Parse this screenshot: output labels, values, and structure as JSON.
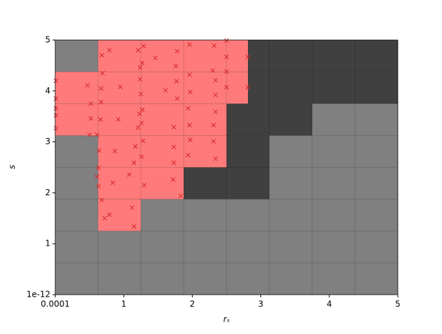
{
  "chart_data": {
    "type": "scatter",
    "x_label": "rₛ",
    "y_label": "s",
    "xlim": [
      0.0001,
      5
    ],
    "ylim": [
      1e-12,
      5
    ],
    "xticks": [
      0.0001,
      1,
      2,
      3,
      4,
      5
    ],
    "yticks": [
      1e-12,
      1,
      2,
      3,
      4,
      5
    ],
    "regions": [
      {
        "color": "#808080",
        "rects": [
          [
            0.0001,
            5,
            1e-12,
            5
          ]
        ]
      },
      {
        "color": "#404040",
        "rects": [
          [
            2.8125,
            5,
            3.75,
            5
          ],
          [
            2.5,
            3.75,
            3.125,
            3.75
          ],
          [
            2.5,
            3.125,
            2.5,
            3.125
          ],
          [
            1.875,
            3.125,
            1.875,
            2.5
          ]
        ]
      },
      {
        "color": "#ff7b7b",
        "rects": [
          [
            0.625,
            2.8125,
            4.375,
            5
          ],
          [
            0.0001,
            2.8125,
            3.75,
            4.375
          ],
          [
            0.0001,
            2.5,
            3.125,
            3.75
          ],
          [
            0.625,
            2.5,
            2.5,
            3.125
          ],
          [
            0.625,
            1.875,
            1.875,
            2.5
          ],
          [
            0.625,
            1.25,
            1.25,
            1.875
          ]
        ]
      }
    ],
    "color": "#d62728",
    "x": [
      0.68,
      0.79,
      0.69,
      0.67,
      0.67,
      0.66,
      0.61,
      0.64,
      0.63,
      0.61,
      0.63,
      0.68,
      0.72,
      0.79,
      0.84,
      0.87,
      0.92,
      0.95,
      1.15,
      1.12,
      1.08,
      1.15,
      1.17,
      1.21,
      1.23,
      1.25,
      1.24,
      1.21,
      1.29,
      1.24,
      1.27,
      1.3,
      1.26,
      1.28,
      1.26,
      1.27,
      0.01,
      0.01,
      0.01,
      0.01,
      0.01,
      0.47,
      0.52,
      0.52,
      0.5,
      1.46,
      1.61,
      1.73,
      1.73,
      1.73,
      1.72,
      1.76,
      1.77,
      1.78,
      1.83,
      1.78,
      1.96,
      1.96,
      1.97,
      1.94,
      1.96,
      1.97,
      1.94,
      2.32,
      2.5,
      2.5,
      2.5,
      2.3,
      2.34,
      2.34,
      2.34,
      2.31,
      2.31,
      2.34,
      2.5,
      2.81,
      2.81
    ],
    "y": [
      4.7,
      4.8,
      4.35,
      4.05,
      3.78,
      3.44,
      3.14,
      2.83,
      2.49,
      2.32,
      2.13,
      1.86,
      1.5,
      1.57,
      2.2,
      2.82,
      3.44,
      4.08,
      1.34,
      1.71,
      2.36,
      2.59,
      2.91,
      3.28,
      3.55,
      3.94,
      4.23,
      4.8,
      4.88,
      4.46,
      4.55,
      2.15,
      2.71,
      3.02,
      3.37,
      3.63,
      4.2,
      3.85,
      3.66,
      3.52,
      3.27,
      4.11,
      3.75,
      3.46,
      3.14,
      4.65,
      4.01,
      3.29,
      2.9,
      2.59,
      2.26,
      4.49,
      4.19,
      3.85,
      1.94,
      4.78,
      4.91,
      4.32,
      3.98,
      3.66,
      3.33,
      3.04,
      2.74,
      4.89,
      4.99,
      4.67,
      4.38,
      4.4,
      4.21,
      3.92,
      3.59,
      3.33,
      3.01,
      2.67,
      4.07,
      4.67,
      4.07
    ]
  }
}
